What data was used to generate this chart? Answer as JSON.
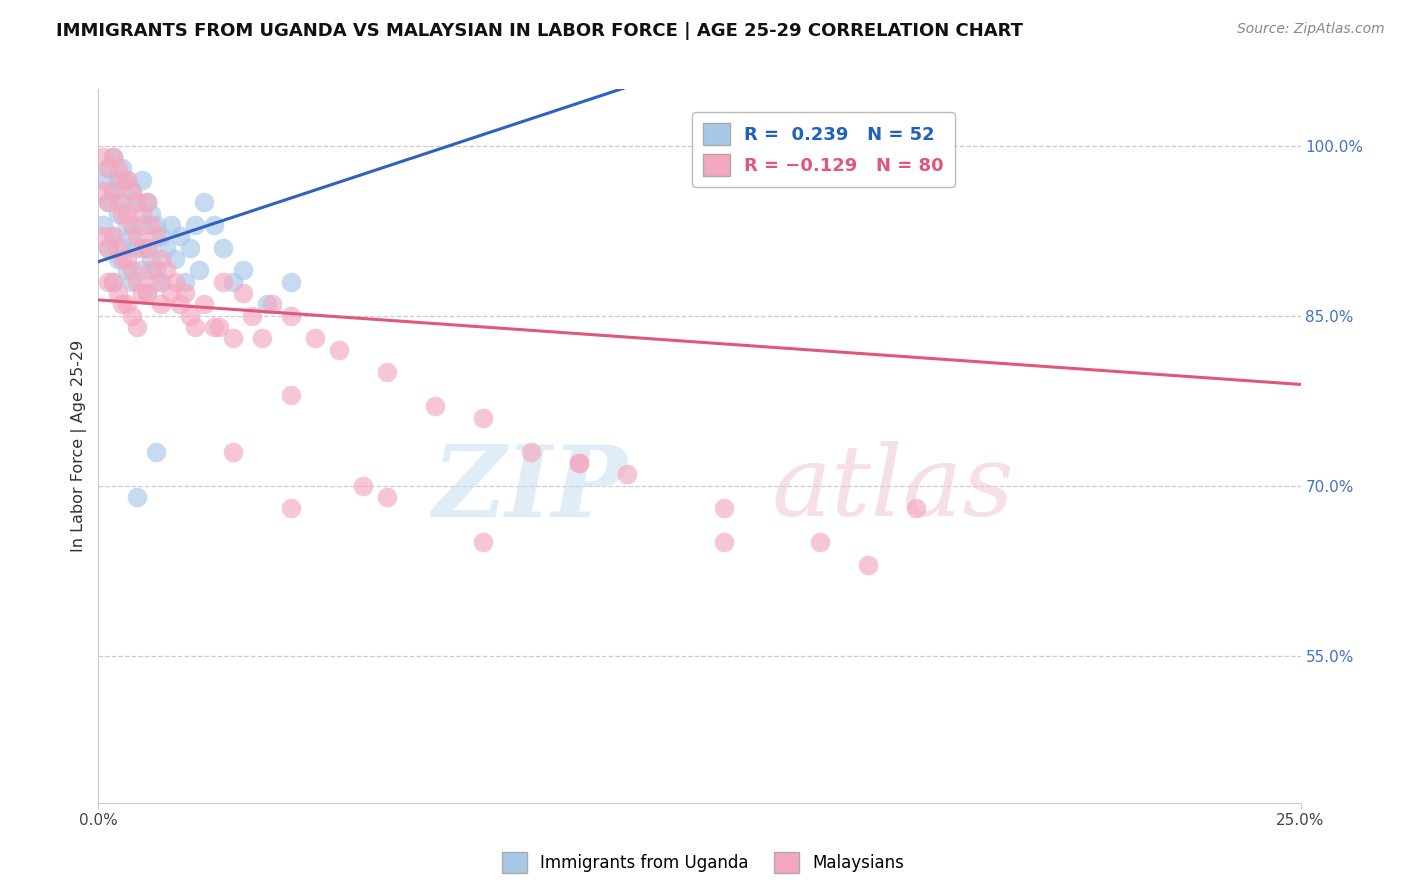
{
  "title": "IMMIGRANTS FROM UGANDA VS MALAYSIAN IN LABOR FORCE | AGE 25-29 CORRELATION CHART",
  "source": "Source: ZipAtlas.com",
  "ylabel": "In Labor Force | Age 25-29",
  "right_yticks": [
    1.0,
    0.85,
    0.7,
    0.55
  ],
  "right_yticklabels": [
    "100.0%",
    "85.0%",
    "70.0%",
    "55.0%"
  ],
  "xlim": [
    0.0,
    0.25
  ],
  "ylim": [
    0.42,
    1.05
  ],
  "uganda_R": 0.239,
  "malaysia_R": -0.129,
  "uganda_color": "#a8c8e8",
  "malaysia_color": "#f4a8c0",
  "uganda_line_color": "#3060c0",
  "malaysia_line_color": "#e05878",
  "uganda_x": [
    0.001,
    0.001,
    0.002,
    0.002,
    0.002,
    0.003,
    0.003,
    0.003,
    0.003,
    0.004,
    0.004,
    0.004,
    0.005,
    0.005,
    0.005,
    0.006,
    0.006,
    0.006,
    0.007,
    0.007,
    0.007,
    0.008,
    0.008,
    0.009,
    0.009,
    0.009,
    0.01,
    0.01,
    0.01,
    0.011,
    0.011,
    0.012,
    0.012,
    0.013,
    0.013,
    0.014,
    0.015,
    0.016,
    0.017,
    0.018,
    0.019,
    0.02,
    0.021,
    0.022,
    0.024,
    0.026,
    0.028,
    0.03,
    0.035,
    0.04,
    0.012,
    0.008
  ],
  "uganda_y": [
    0.97,
    0.93,
    0.98,
    0.95,
    0.91,
    0.99,
    0.96,
    0.92,
    0.88,
    0.97,
    0.94,
    0.9,
    0.98,
    0.95,
    0.91,
    0.97,
    0.93,
    0.89,
    0.96,
    0.92,
    0.88,
    0.95,
    0.91,
    0.97,
    0.93,
    0.89,
    0.95,
    0.91,
    0.87,
    0.94,
    0.9,
    0.93,
    0.89,
    0.92,
    0.88,
    0.91,
    0.93,
    0.9,
    0.92,
    0.88,
    0.91,
    0.93,
    0.89,
    0.95,
    0.93,
    0.91,
    0.88,
    0.89,
    0.86,
    0.88,
    0.73,
    0.69
  ],
  "malaysia_x": [
    0.001,
    0.001,
    0.001,
    0.002,
    0.002,
    0.002,
    0.002,
    0.003,
    0.003,
    0.003,
    0.003,
    0.004,
    0.004,
    0.004,
    0.004,
    0.005,
    0.005,
    0.005,
    0.005,
    0.006,
    0.006,
    0.006,
    0.006,
    0.007,
    0.007,
    0.007,
    0.007,
    0.008,
    0.008,
    0.008,
    0.008,
    0.009,
    0.009,
    0.009,
    0.01,
    0.01,
    0.01,
    0.011,
    0.011,
    0.012,
    0.012,
    0.013,
    0.013,
    0.014,
    0.015,
    0.016,
    0.017,
    0.018,
    0.019,
    0.02,
    0.022,
    0.024,
    0.026,
    0.028,
    0.03,
    0.032,
    0.034,
    0.036,
    0.04,
    0.045,
    0.05,
    0.06,
    0.07,
    0.08,
    0.09,
    0.1,
    0.11,
    0.13,
    0.15,
    0.17,
    0.025,
    0.04,
    0.028,
    0.055,
    0.08,
    0.16,
    0.1,
    0.13,
    0.06,
    0.04
  ],
  "malaysia_y": [
    0.99,
    0.96,
    0.92,
    0.98,
    0.95,
    0.91,
    0.88,
    0.99,
    0.96,
    0.92,
    0.88,
    0.98,
    0.95,
    0.91,
    0.87,
    0.97,
    0.94,
    0.9,
    0.86,
    0.97,
    0.94,
    0.9,
    0.86,
    0.96,
    0.93,
    0.89,
    0.85,
    0.95,
    0.92,
    0.88,
    0.84,
    0.94,
    0.91,
    0.87,
    0.95,
    0.91,
    0.87,
    0.93,
    0.89,
    0.92,
    0.88,
    0.9,
    0.86,
    0.89,
    0.87,
    0.88,
    0.86,
    0.87,
    0.85,
    0.84,
    0.86,
    0.84,
    0.88,
    0.83,
    0.87,
    0.85,
    0.83,
    0.86,
    0.85,
    0.83,
    0.82,
    0.8,
    0.77,
    0.76,
    0.73,
    0.72,
    0.71,
    0.68,
    0.65,
    0.68,
    0.84,
    0.78,
    0.73,
    0.7,
    0.65,
    0.63,
    0.72,
    0.65,
    0.69,
    0.68
  ]
}
